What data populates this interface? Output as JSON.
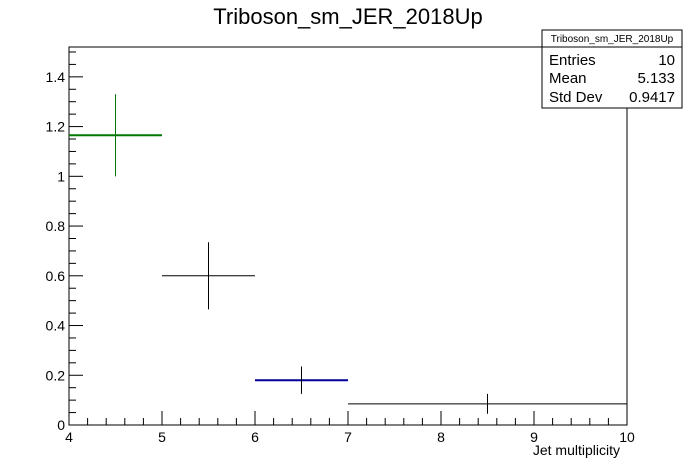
{
  "chart_data": {
    "type": "scatter",
    "title": "Triboson_sm_JER_2018Up",
    "xlabel": "Jet multiplicity",
    "ylabel": "",
    "xlim": [
      4,
      10
    ],
    "ylim": [
      0,
      1.52
    ],
    "x_ticks": [
      "4",
      "5",
      "6",
      "7",
      "8",
      "9",
      "10"
    ],
    "y_ticks": [
      "0",
      "0.2",
      "0.4",
      "0.6",
      "0.8",
      "1",
      "1.2",
      "1.4"
    ],
    "grid": false,
    "points": [
      {
        "x": 4.5,
        "x_low": 4,
        "x_high": 5,
        "y": 1.165,
        "y_err": 0.165,
        "color": "#007700",
        "hline_color": "#007700"
      },
      {
        "x": 5.5,
        "x_low": 5,
        "x_high": 6,
        "y": 0.6,
        "y_err": 0.135,
        "color": "#000000",
        "hline_color": "#000000"
      },
      {
        "x": 6.5,
        "x_low": 6,
        "x_high": 7,
        "y": 0.18,
        "y_err": 0.055,
        "color": "#000000",
        "hline_color": "#000099"
      },
      {
        "x": 8.5,
        "x_low": 7,
        "x_high": 10,
        "y": 0.085,
        "y_err": 0.04,
        "color": "#000000",
        "hline_color": "#000000"
      }
    ],
    "stats": {
      "title": "Triboson_sm_JER_2018Up",
      "rows": [
        {
          "label": "Entries",
          "value": "10"
        },
        {
          "label": "Mean",
          "value": "5.133"
        },
        {
          "label": "Std Dev",
          "value": "0.9417"
        }
      ]
    }
  }
}
